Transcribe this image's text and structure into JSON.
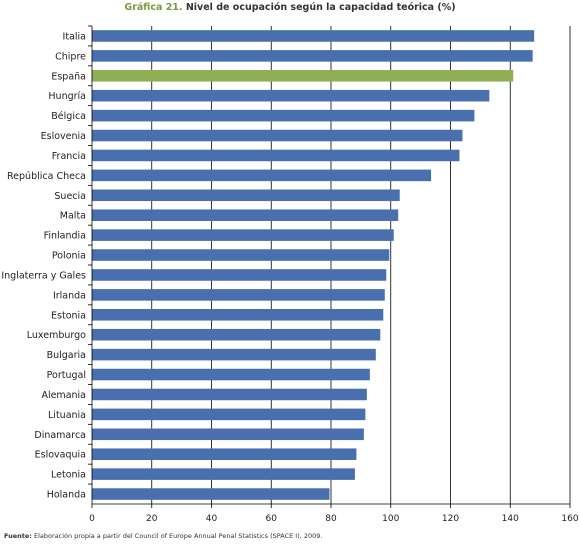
{
  "title_prefix": "Gráfica 21.",
  "title_text": "Nivel de ocupación según la capacidad teórica (%)",
  "source_label": "Fuente:",
  "source_text": "Elaboración propia a partir del Council of Europe Annual Penal Statistics (SPACE I), 2009.",
  "colors": {
    "bar": "#4a6fae",
    "highlight": "#8faf54",
    "grid": "#000000"
  },
  "chart_data": {
    "type": "bar",
    "orientation": "horizontal",
    "title": "Nivel de ocupación según la capacidad teórica (%)",
    "categories": [
      "Italia",
      "Chipre",
      "España",
      "Hungría",
      "Bélgica",
      "Eslovenia",
      "Francia",
      "República Checa",
      "Suecia",
      "Malta",
      "Finlandia",
      "Polonia",
      "Inglaterra y Gales",
      "Irlanda",
      "Estonia",
      "Luxemburgo",
      "Bulgaria",
      "Portugal",
      "Alemania",
      "Lituania",
      "Dinamarca",
      "Eslovaquia",
      "Letonia",
      "Holanda"
    ],
    "values": [
      148,
      147.5,
      141,
      133,
      128,
      124,
      123,
      113.5,
      103,
      102.5,
      101,
      99.5,
      98.5,
      98,
      97.5,
      96.5,
      95,
      93,
      92,
      91.5,
      91,
      88.5,
      88,
      79.5
    ],
    "highlight": "España",
    "xlim": [
      0,
      160
    ],
    "xticks": [
      0,
      20,
      40,
      60,
      80,
      100,
      120,
      140,
      160
    ],
    "grid": true
  }
}
